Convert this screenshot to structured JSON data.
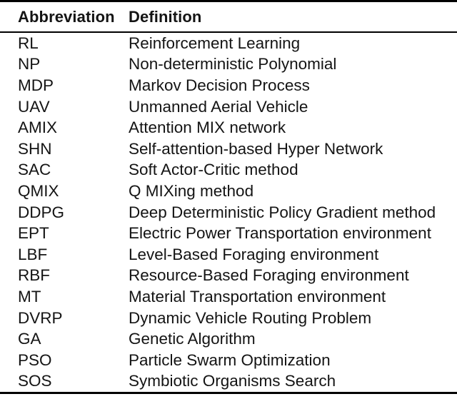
{
  "table": {
    "columns": [
      {
        "label": "Abbreviation"
      },
      {
        "label": "Definition"
      }
    ],
    "rows": [
      {
        "abbr": "RL",
        "definition": "Reinforcement Learning"
      },
      {
        "abbr": "NP",
        "definition": "Non-deterministic Polynomial"
      },
      {
        "abbr": "MDP",
        "definition": "Markov Decision Process"
      },
      {
        "abbr": "UAV",
        "definition": "Unmanned Aerial Vehicle"
      },
      {
        "abbr": "AMIX",
        "definition": "Attention MIX network"
      },
      {
        "abbr": "SHN",
        "definition": "Self-attention-based Hyper Network"
      },
      {
        "abbr": "SAC",
        "definition": "Soft Actor-Critic method"
      },
      {
        "abbr": "QMIX",
        "definition": "Q MIXing method"
      },
      {
        "abbr": "DDPG",
        "definition": "Deep Deterministic Policy Gradient method"
      },
      {
        "abbr": "EPT",
        "definition": "Electric Power Transportation environment"
      },
      {
        "abbr": "LBF",
        "definition": "Level-Based Foraging environment"
      },
      {
        "abbr": "RBF",
        "definition": "Resource-Based Foraging environment"
      },
      {
        "abbr": "MT",
        "definition": "Material Transportation environment"
      },
      {
        "abbr": "DVRP",
        "definition": "Dynamic Vehicle Routing Problem"
      },
      {
        "abbr": "GA",
        "definition": "Genetic Algorithm"
      },
      {
        "abbr": "PSO",
        "definition": "Particle Swarm Optimization"
      },
      {
        "abbr": "SOS",
        "definition": "Symbiotic Organisms Search"
      }
    ]
  },
  "colors": {
    "background": "#ffffff",
    "text": "#141414",
    "rule": "#000000"
  }
}
